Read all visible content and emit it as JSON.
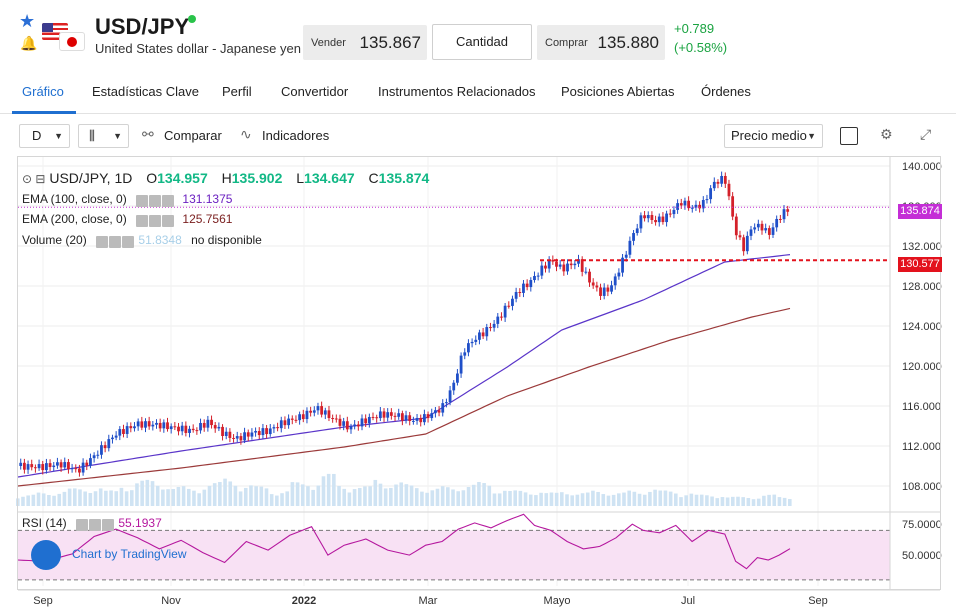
{
  "header": {
    "symbol": "USD/JPY",
    "description": "United States dollar - Japanese yen",
    "sell_label": "Vender",
    "sell_value": "135.867",
    "quantity_label": "Cantidad",
    "buy_label": "Comprar",
    "buy_value": "135.880",
    "change_abs": "+0.789",
    "change_pct": "(+0.58%)",
    "accent_color": "#1f6fd0",
    "up_color": "#1aa341"
  },
  "tabs": [
    {
      "label": "Gráfico",
      "active": true
    },
    {
      "label": "Estadísticas Clave"
    },
    {
      "label": "Perfil"
    },
    {
      "label": "Convertidor"
    },
    {
      "label": "Instrumentos Relacionados"
    },
    {
      "label": "Posiciones Abiertas"
    },
    {
      "label": "Órdenes"
    }
  ],
  "toolbar": {
    "interval": "D",
    "compare_label": "Comparar",
    "indicators_label": "Indicadores",
    "price_type": "Precio medio"
  },
  "legend": {
    "title": "USD/JPY, 1D",
    "o_label": "O",
    "o_value": "134.957",
    "h_label": "H",
    "h_value": "135.902",
    "l_label": "L",
    "l_value": "134.647",
    "c_label": "C",
    "c_value": "135.874",
    "ema100_label": "EMA (100, close, 0)",
    "ema100_value": "131.1375",
    "ema200_label": "EMA (200, close, 0)",
    "ema200_value": "125.7561",
    "volume_label": "Volume (20)",
    "volume_value": "51.8348",
    "volume_note": "no disponible",
    "rsi_label": "RSI (14)",
    "rsi_value": "55.1937"
  },
  "price_tags": {
    "last": "135.874",
    "level": "130.577"
  },
  "watermark": "Chart by TradingView",
  "chart_data": {
    "type": "candlestick",
    "x_labels": [
      "Sep",
      "Nov",
      "2022",
      "Mar",
      "Mayo",
      "Jul",
      "Sep"
    ],
    "y_ticks": [
      "108.000",
      "112.000",
      "116.000",
      "120.000",
      "124.000",
      "128.000",
      "132.000",
      "136.000",
      "140.000"
    ],
    "ylim": [
      106,
      141
    ],
    "rsi_ticks": [
      "50.0000",
      "75.0000"
    ],
    "rsi_ylim": [
      25,
      80
    ],
    "close_path": [
      [
        0,
        110.0
      ],
      [
        8,
        109.9
      ],
      [
        16,
        110.2
      ],
      [
        22,
        109.5
      ],
      [
        28,
        111.0
      ],
      [
        36,
        113.2
      ],
      [
        44,
        114.2
      ],
      [
        52,
        114.1
      ],
      [
        58,
        113.8
      ],
      [
        64,
        113.5
      ],
      [
        70,
        114.4
      ],
      [
        76,
        113.2
      ],
      [
        80,
        112.7
      ],
      [
        86,
        113.3
      ],
      [
        92,
        113.5
      ],
      [
        98,
        114.4
      ],
      [
        104,
        114.9
      ],
      [
        110,
        115.8
      ],
      [
        116,
        114.7
      ],
      [
        122,
        113.8
      ],
      [
        128,
        114.6
      ],
      [
        134,
        115.2
      ],
      [
        140,
        115.0
      ],
      [
        146,
        114.5
      ],
      [
        150,
        114.9
      ],
      [
        156,
        115.8
      ],
      [
        160,
        118.0
      ],
      [
        164,
        121.6
      ],
      [
        168,
        122.7
      ],
      [
        172,
        123.5
      ],
      [
        176,
        124.5
      ],
      [
        180,
        126.0
      ],
      [
        184,
        127.5
      ],
      [
        188,
        128.3
      ],
      [
        192,
        129.5
      ],
      [
        196,
        130.6
      ],
      [
        200,
        129.7
      ],
      [
        206,
        130.5
      ],
      [
        210,
        128.6
      ],
      [
        214,
        127.3
      ],
      [
        218,
        127.8
      ],
      [
        222,
        130.2
      ],
      [
        226,
        133.0
      ],
      [
        230,
        135.2
      ],
      [
        234,
        134.5
      ],
      [
        238,
        134.8
      ],
      [
        244,
        136.4
      ],
      [
        248,
        135.8
      ],
      [
        252,
        136.2
      ],
      [
        256,
        138.3
      ],
      [
        260,
        138.8
      ],
      [
        262,
        136.2
      ],
      [
        264,
        133.4
      ],
      [
        267,
        131.8
      ],
      [
        270,
        134.0
      ],
      [
        274,
        133.9
      ],
      [
        276,
        133.1
      ],
      [
        280,
        134.9
      ],
      [
        284,
        135.874
      ]
    ],
    "ema100": [
      [
        0,
        108.9
      ],
      [
        60,
        111.5
      ],
      [
        120,
        113.9
      ],
      [
        150,
        114.8
      ],
      [
        180,
        119.9
      ],
      [
        200,
        123.6
      ],
      [
        230,
        126.6
      ],
      [
        260,
        130.4
      ],
      [
        284,
        131.1375
      ]
    ],
    "ema200": [
      [
        0,
        108.0
      ],
      [
        60,
        109.8
      ],
      [
        120,
        111.9
      ],
      [
        150,
        113.2
      ],
      [
        180,
        117.0
      ],
      [
        210,
        119.9
      ],
      [
        240,
        122.6
      ],
      [
        270,
        124.9
      ],
      [
        284,
        125.7561
      ]
    ],
    "rsi": [
      [
        0,
        46
      ],
      [
        10,
        45
      ],
      [
        20,
        51
      ],
      [
        28,
        65
      ],
      [
        36,
        71
      ],
      [
        44,
        64
      ],
      [
        52,
        55
      ],
      [
        60,
        62
      ],
      [
        68,
        52
      ],
      [
        76,
        44
      ],
      [
        84,
        61
      ],
      [
        92,
        54
      ],
      [
        100,
        66
      ],
      [
        108,
        73
      ],
      [
        114,
        50
      ],
      [
        120,
        58
      ],
      [
        128,
        63
      ],
      [
        136,
        54
      ],
      [
        144,
        50
      ],
      [
        150,
        58
      ],
      [
        156,
        61
      ],
      [
        162,
        71
      ],
      [
        168,
        76
      ],
      [
        174,
        72
      ],
      [
        180,
        78
      ],
      [
        186,
        83
      ],
      [
        190,
        74
      ],
      [
        196,
        70
      ],
      [
        202,
        61
      ],
      [
        208,
        55
      ],
      [
        214,
        57
      ],
      [
        220,
        64
      ],
      [
        226,
        75
      ],
      [
        230,
        70
      ],
      [
        236,
        68
      ],
      [
        242,
        74
      ],
      [
        248,
        61
      ],
      [
        254,
        70
      ],
      [
        260,
        67
      ],
      [
        264,
        45
      ],
      [
        268,
        39
      ],
      [
        272,
        48
      ],
      [
        276,
        46
      ],
      [
        280,
        50
      ],
      [
        284,
        55.1937
      ]
    ],
    "volume_rel": [
      0.2,
      0.25,
      0.3,
      0.35,
      0.4,
      0.3,
      0.45,
      0.55,
      0.5,
      0.4,
      0.35,
      0.5,
      0.6,
      0.45,
      0.4,
      0.3,
      0.5,
      0.55,
      0.7,
      0.45,
      0.4,
      0.6,
      0.5,
      0.45,
      0.35,
      0.4,
      0.45,
      0.5,
      0.35,
      0.3,
      0.3,
      0.25,
      0.3,
      0.25,
      0.3,
      0.25,
      0.3,
      0.35,
      0.3,
      0.25,
      0.2,
      0.2,
      0.15,
      0.15,
      0.2,
      0.15
    ]
  }
}
